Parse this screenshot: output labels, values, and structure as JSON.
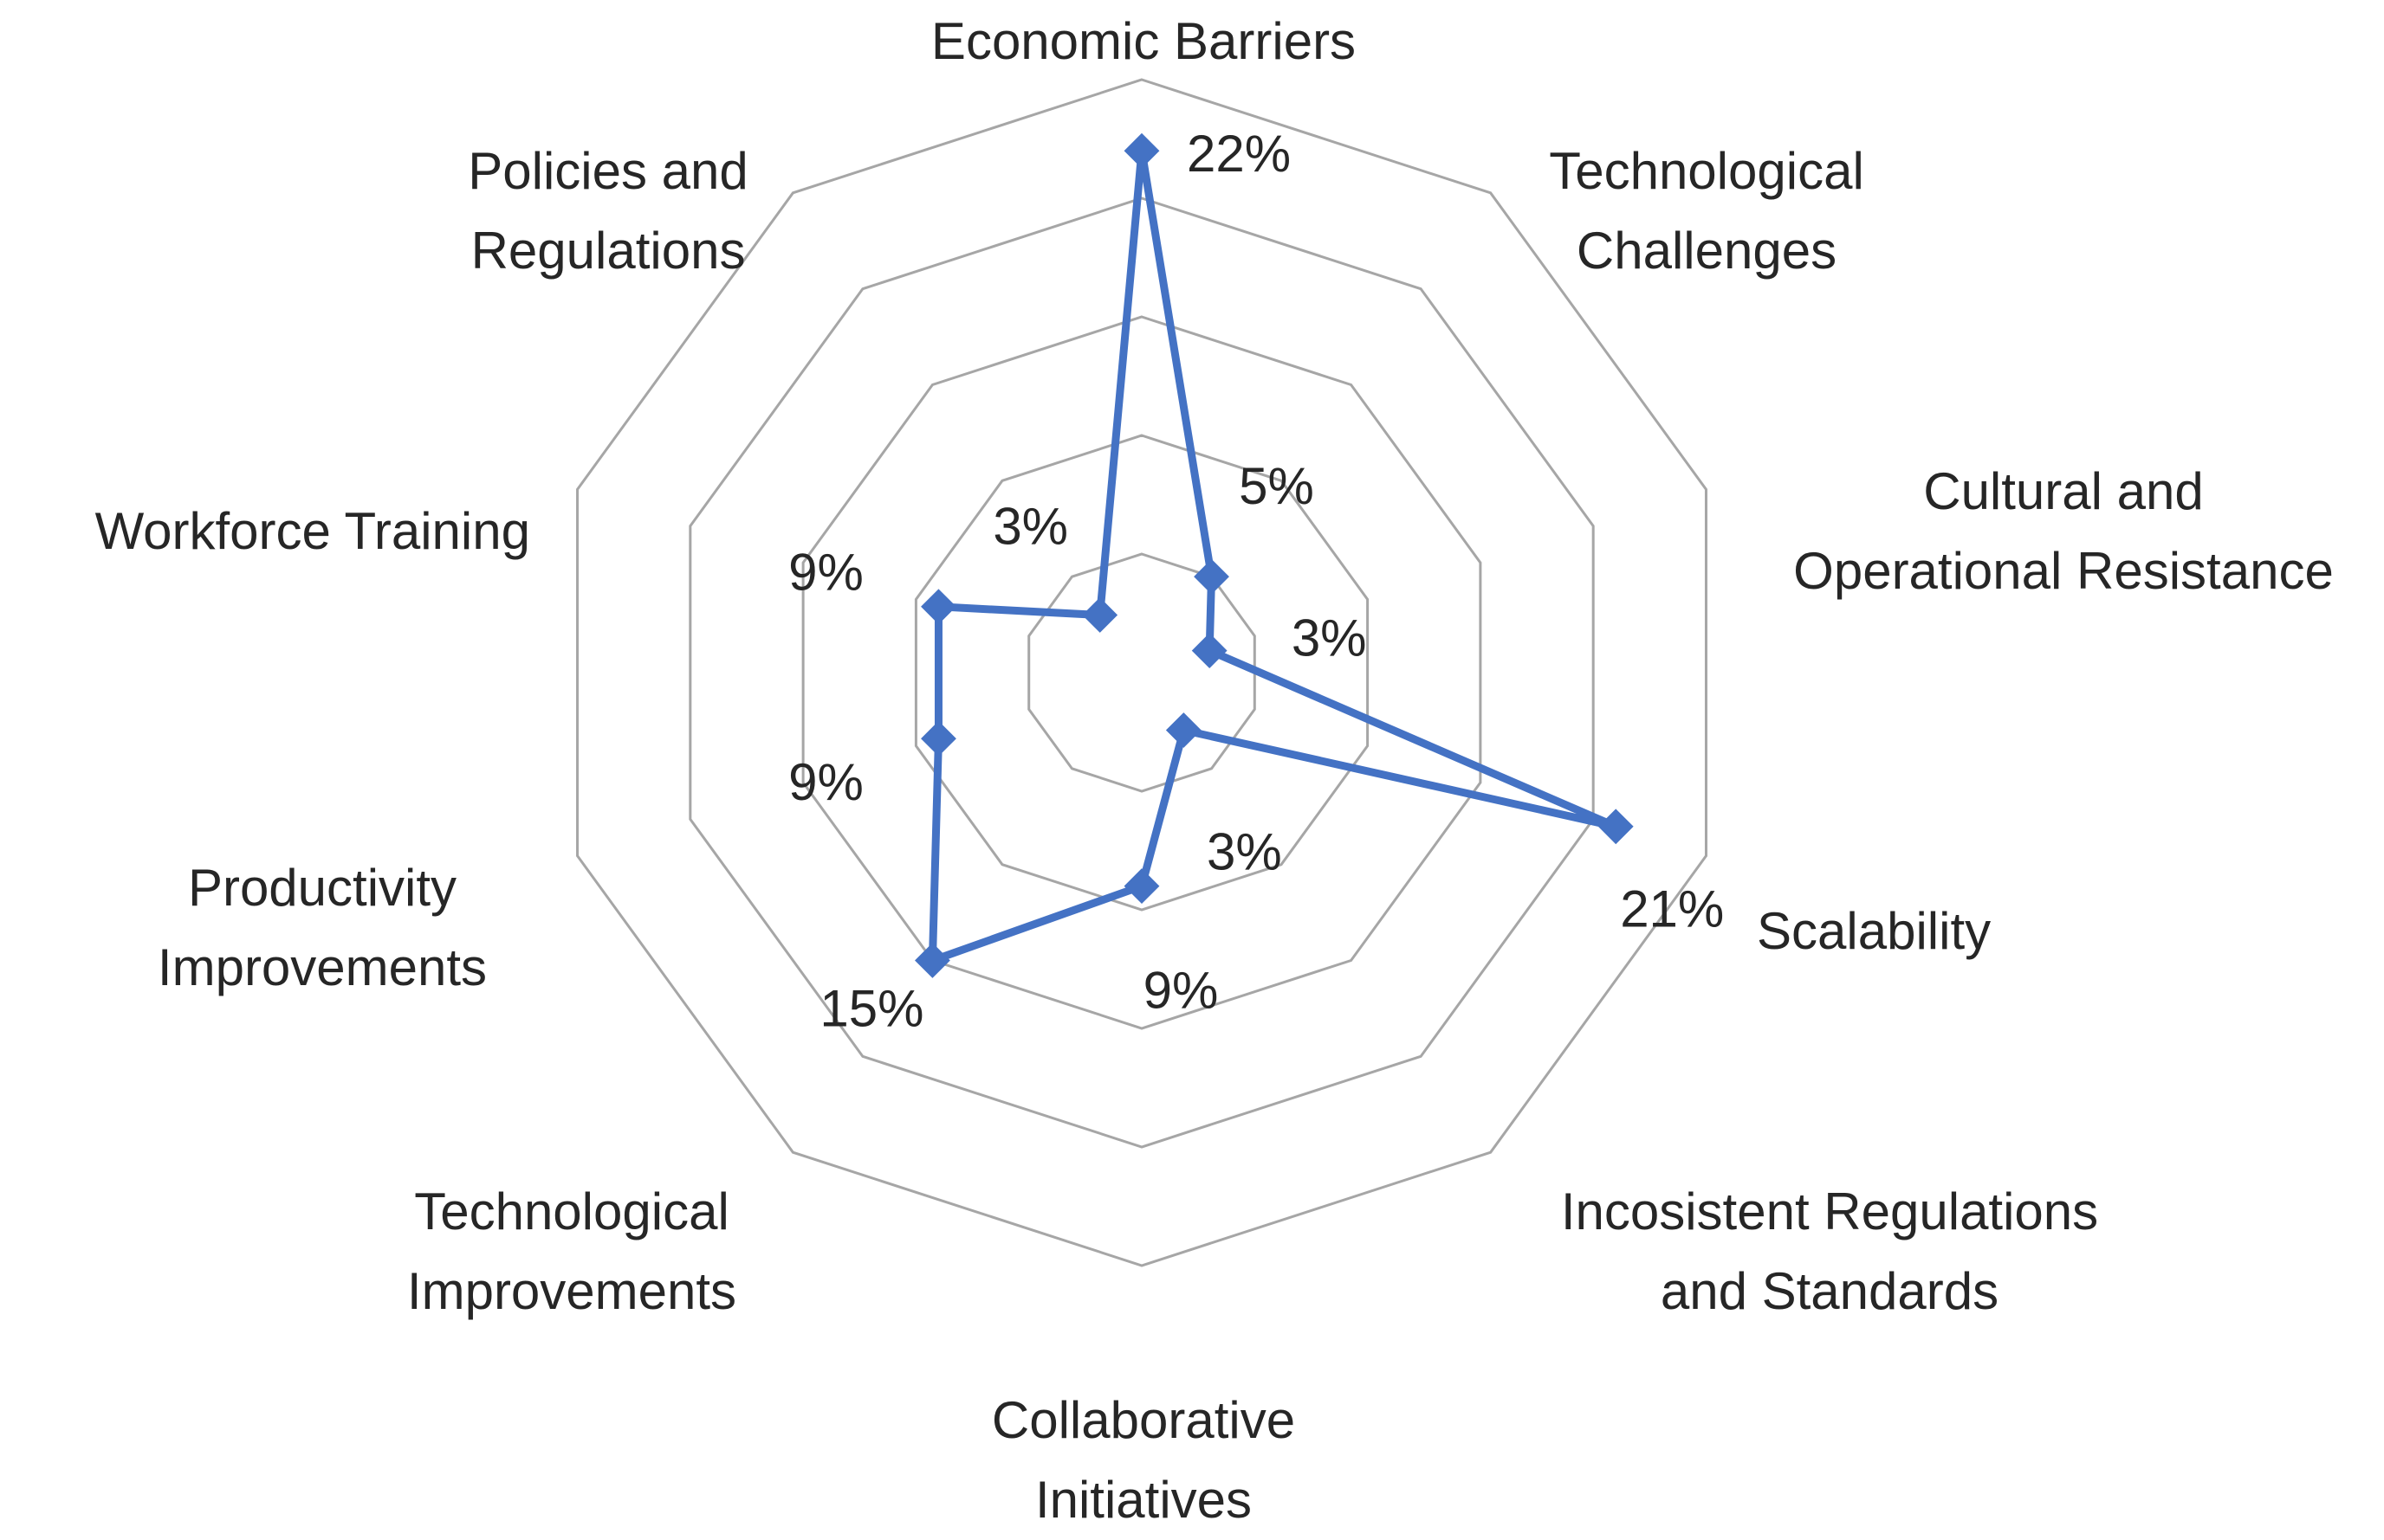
{
  "chart_data": {
    "type": "radar",
    "categories": [
      [
        "Economic Barriers"
      ],
      [
        "Technological",
        "Challenges"
      ],
      [
        "Cultural and",
        "Operational Resistance"
      ],
      [
        "Scalability"
      ],
      [
        "Incosistent Regulations",
        "and Standards"
      ],
      [
        "Collaborative",
        "Initiatives"
      ],
      [
        "Technological",
        "Improvements"
      ],
      [
        "Productivity",
        "Improvements"
      ],
      [
        "Workforce Training"
      ],
      [
        "Policies and",
        "Regulations"
      ]
    ],
    "series": [
      {
        "values": [
          22,
          5,
          3,
          21,
          3,
          9,
          15,
          9,
          9,
          3
        ],
        "data_labels": [
          "22%",
          "5%",
          "3%",
          "21%",
          "3%",
          "9%",
          "15%",
          "9%",
          "9%",
          "3%"
        ]
      }
    ],
    "rlim": [
      0,
      25
    ],
    "grid_rings": 5,
    "grid": true,
    "legend": "none",
    "marker": "diamond",
    "colors": {
      "series": "#4472C4",
      "grid": "#a6a6a6",
      "text": "#262626"
    }
  }
}
